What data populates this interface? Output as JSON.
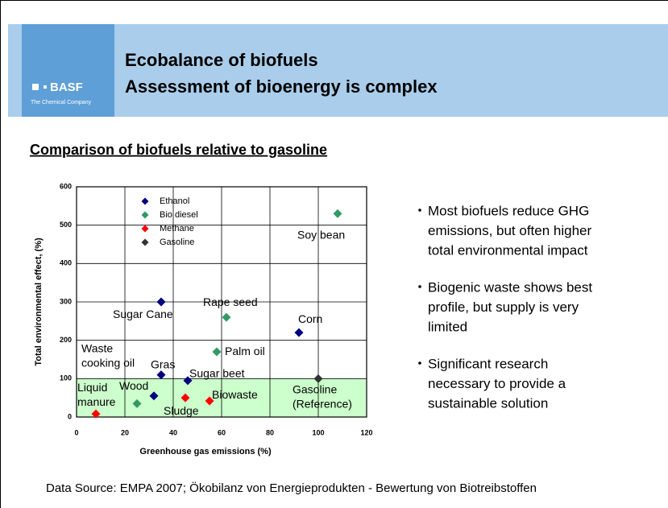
{
  "header": {
    "logo": {
      "name": "BASF",
      "tagline": "The Chemical Company"
    },
    "title_lines": [
      "Ecobalance of biofuels",
      "Assessment of bioenergy is complex"
    ]
  },
  "subtitle": "Comparison of biofuels relative to gasoline",
  "chart_data": {
    "type": "scatter",
    "xlabel": "Greenhouse gas emissions (%)",
    "ylabel": "Total environmental effect, (%)",
    "xlim": [
      0,
      120
    ],
    "ylim": [
      0,
      600
    ],
    "xticks": [
      0,
      20,
      40,
      60,
      80,
      100,
      120
    ],
    "yticks": [
      0,
      100,
      200,
      300,
      400,
      500,
      600
    ],
    "grid": true,
    "legend": "upper left",
    "shaded_region": {
      "ylim": [
        0,
        100
      ],
      "color": "#ccffcc"
    },
    "series": [
      {
        "name": "Ethanol",
        "color": "#000080",
        "x": [
          35,
          92,
          35,
          46,
          32
        ],
        "values": [
          300,
          220,
          110,
          95,
          55
        ],
        "labels": [
          "Sugar Cane",
          "Corn",
          "Gras",
          "Sugar beet",
          "Wood"
        ]
      },
      {
        "name": "Bio diesel",
        "color": "#339966",
        "x": [
          108,
          62,
          58,
          25
        ],
        "values": [
          530,
          260,
          170,
          35
        ],
        "labels": [
          "Soy bean",
          "Rape seed",
          "Palm oil",
          "Waste\ncooking oil"
        ]
      },
      {
        "name": "Methane",
        "color": "#ff0000",
        "x": [
          8,
          45,
          55
        ],
        "values": [
          8,
          50,
          42
        ],
        "labels": [
          "Liquid\nmanure",
          "Sludge",
          "Biowaste"
        ]
      },
      {
        "name": "Gasoline",
        "color": "#333333",
        "x": [
          100
        ],
        "values": [
          100
        ],
        "labels": [
          "Gasoline\n(Reference)"
        ]
      }
    ]
  },
  "bullets": [
    [
      "Most biofuels reduce GHG",
      "emissions, but often higher",
      "total environmental impact"
    ],
    [
      "Biogenic waste shows best",
      "profile, but supply is very",
      "limited"
    ],
    [
      "Significant research",
      "necessary to provide a",
      "sustainable solution"
    ]
  ],
  "footer": "Data Source: EMPA 2007; Ökobilanz von Energieprodukten - Bewertung von Biotreibstoffen"
}
